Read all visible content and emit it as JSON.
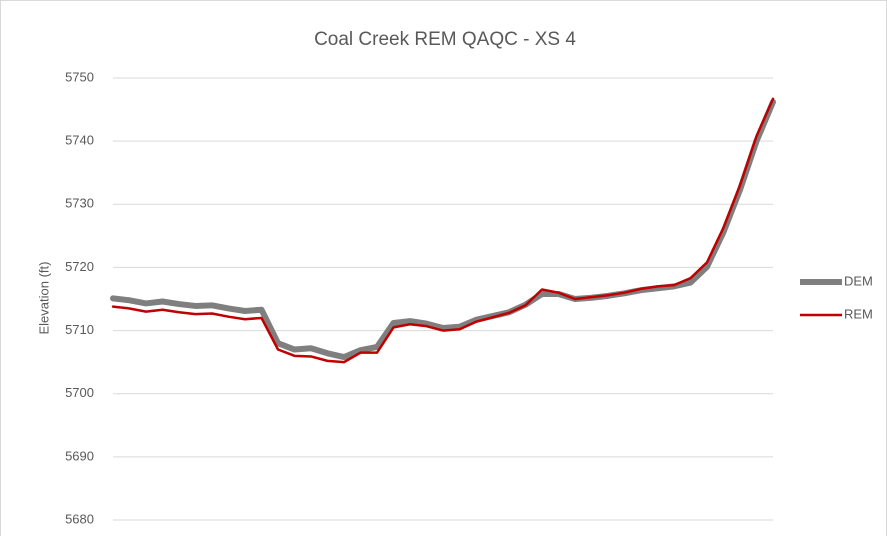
{
  "chart_data": {
    "type": "line",
    "title": "Coal Creek REM QAQC - XS 4",
    "y_label": "Elevation (ft)",
    "ylim": [
      5680,
      5750
    ],
    "yticks": [
      5680,
      5690,
      5700,
      5710,
      5720,
      5730,
      5740,
      5750
    ],
    "grid": true,
    "legend": "right",
    "series": [
      {
        "name": "DEM",
        "color": "#7f7f7f",
        "values": [
          5715.1,
          5714.8,
          5714.3,
          5714.6,
          5714.2,
          5713.9,
          5714.0,
          5713.5,
          5713.1,
          5713.3,
          5708.0,
          5707.0,
          5707.2,
          5706.4,
          5705.8,
          5706.9,
          5707.4,
          5711.2,
          5711.5,
          5711.1,
          5710.4,
          5710.6,
          5711.7,
          5712.3,
          5712.9,
          5714.1,
          5715.8,
          5715.8,
          5715.0,
          5715.2,
          5715.5,
          5715.9,
          5716.4,
          5716.7,
          5717.0,
          5717.6,
          5720.1,
          5725.6,
          5732.3,
          5740.0,
          5746.2
        ]
      },
      {
        "name": "REM",
        "color": "#c00000",
        "values": [
          5713.8,
          5713.5,
          5713.0,
          5713.3,
          5712.9,
          5712.6,
          5712.7,
          5712.2,
          5711.8,
          5712.0,
          5707.0,
          5706.0,
          5705.9,
          5705.2,
          5705.0,
          5706.5,
          5706.5,
          5710.5,
          5711.0,
          5710.7,
          5710.0,
          5710.2,
          5711.4,
          5712.1,
          5712.8,
          5714.0,
          5716.5,
          5716.0,
          5715.0,
          5715.3,
          5715.6,
          5716.0,
          5716.6,
          5717.0,
          5717.2,
          5718.3,
          5720.8,
          5726.3,
          5733.0,
          5740.8,
          5746.7
        ]
      }
    ]
  }
}
